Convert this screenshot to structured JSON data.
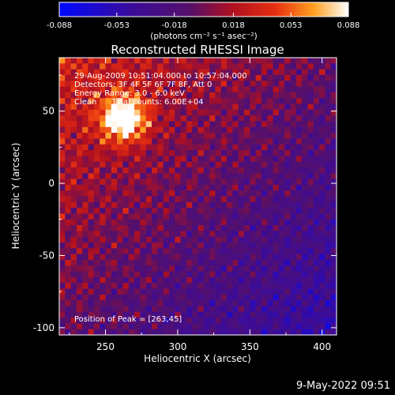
{
  "colorbar": {
    "ticks": [
      "-0.088",
      "-0.053",
      "-0.018",
      "0.018",
      "0.053",
      "0.088"
    ],
    "tick_values": [
      -0.088,
      -0.053,
      -0.018,
      0.018,
      0.053,
      0.088
    ],
    "range": [
      -0.088,
      0.088
    ],
    "units_label": "(photons cm⁻² s⁻¹ asec⁻²)"
  },
  "chart_data": {
    "type": "heatmap",
    "title": "Reconstructed RHESSI Image",
    "xlabel": "Heliocentric X (arcsec)",
    "ylabel": "Heliocentric Y (arcsec)",
    "xlim": [
      218,
      410
    ],
    "ylim": [
      -105,
      87
    ],
    "xticks": [
      250,
      300,
      350,
      400
    ],
    "yticks": [
      50,
      0,
      -50,
      -100
    ],
    "colormap": "RHESSI red-temperature (blue → purple → red → orange → yellow → white)",
    "annotations": [
      "29-Aug-2009 10:51:04.000 to 10:57:04.000",
      "Detectors: 3F 4F 5F 6F 7F 8F, Att 0",
      "Energy Range: 3.0 - 6.0 keV",
      "Clean      Total counts: 6.00E+04"
    ],
    "peak_label": "Position of Peak = [263,45]",
    "peak": [
      263,
      45
    ]
  },
  "footer": {
    "date": "9-May-2022 09:51"
  }
}
